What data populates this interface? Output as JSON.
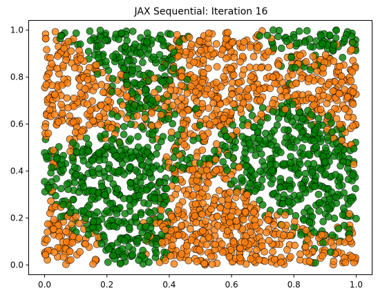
{
  "chart_data": {
    "type": "scatter",
    "title": "JAX Sequential: Iteration 16",
    "xlabel": "",
    "ylabel": "",
    "xlim": [
      -0.05,
      1.05
    ],
    "ylim": [
      -0.04,
      1.04
    ],
    "x_ticks": [
      0.0,
      0.2,
      0.4,
      0.6,
      0.8,
      1.0
    ],
    "y_ticks": [
      0.0,
      0.2,
      0.4,
      0.6,
      0.8,
      1.0
    ],
    "x_tick_labels": [
      "0.0",
      "0.2",
      "0.4",
      "0.6",
      "0.8",
      "1.0"
    ],
    "y_tick_labels": [
      "0.0",
      "0.2",
      "0.4",
      "0.6",
      "0.8",
      "1.0"
    ],
    "grid": false,
    "legend": "none",
    "marker_edge_color": "#000000",
    "series": [
      {
        "color": "#ff7f0e",
        "alpha": 0.8,
        "count": 1250
      },
      {
        "color": "#008000",
        "alpha": 0.8,
        "count": 1250
      }
    ]
  }
}
